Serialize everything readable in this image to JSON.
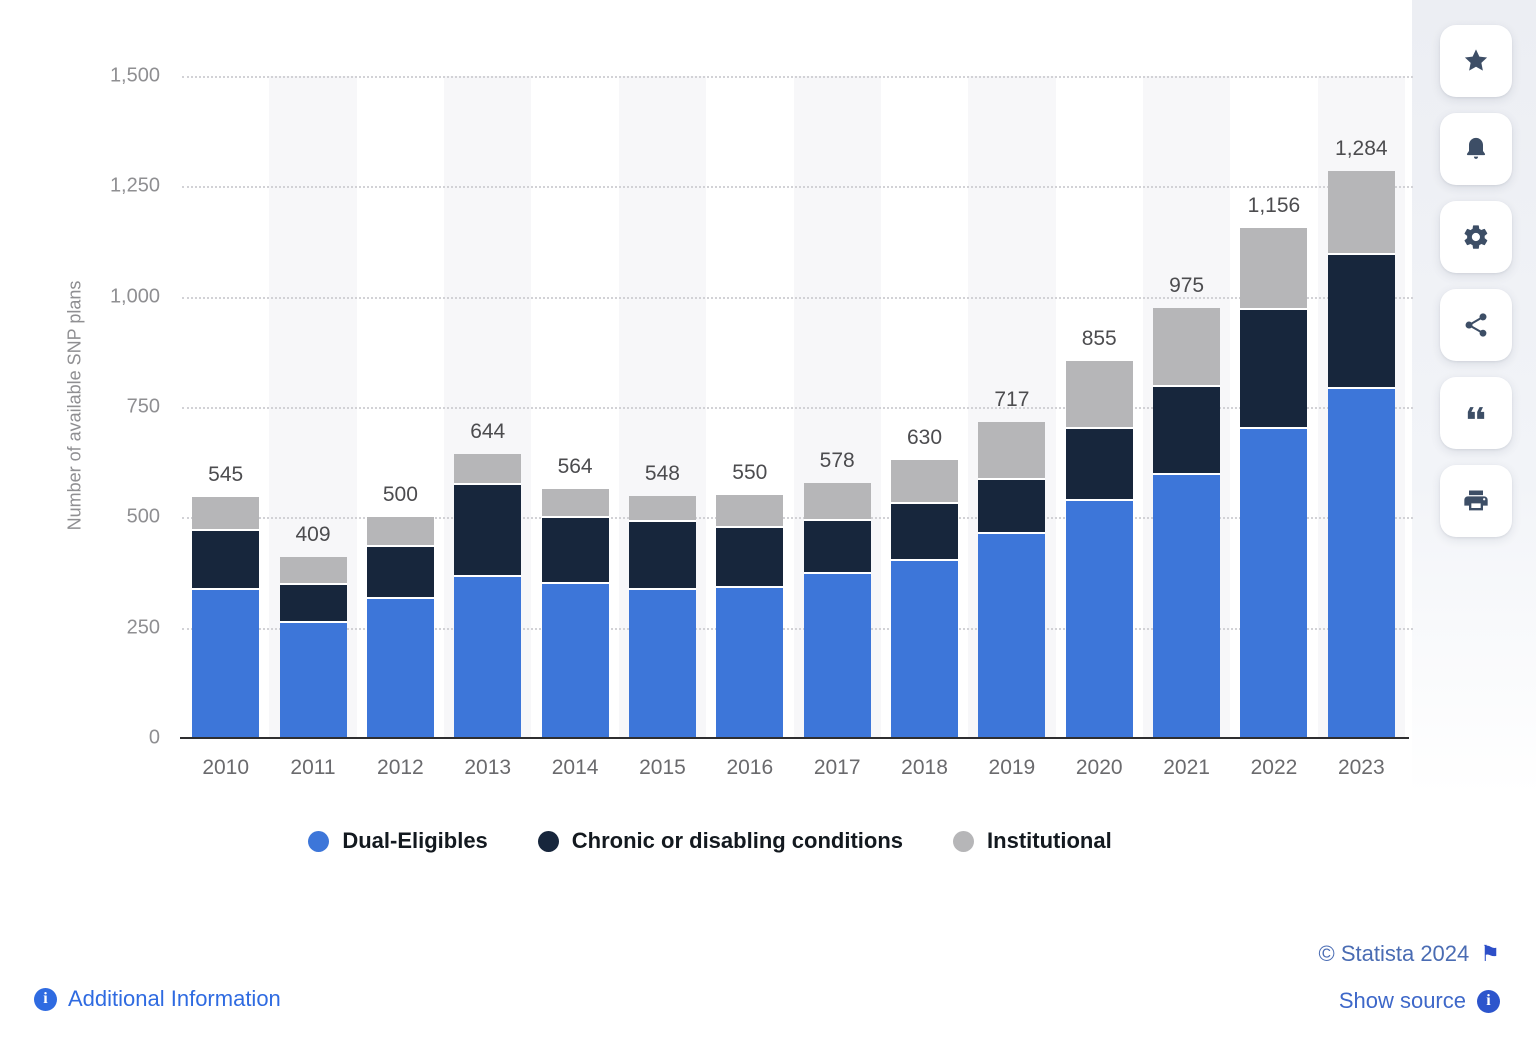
{
  "chart_data": {
    "type": "bar",
    "stacked": true,
    "ylabel": "Number of available SNP plans",
    "xlabel": "",
    "ylim": [
      0,
      1500
    ],
    "y_ticks": [
      0,
      250,
      500,
      750,
      1000,
      1250,
      1500
    ],
    "grid": "dotted-horizontal",
    "legend_position": "bottom",
    "categories": [
      "2010",
      "2011",
      "2012",
      "2013",
      "2014",
      "2015",
      "2016",
      "2017",
      "2018",
      "2019",
      "2020",
      "2021",
      "2022",
      "2023"
    ],
    "series": [
      {
        "name": "Dual-Eligibles",
        "color": "#3d76d9",
        "values": [
          335,
          260,
          314,
          365,
          349,
          335,
          340,
          372,
          400,
          462,
          538,
          596,
          700,
          790
        ]
      },
      {
        "name": "Chronic or disabling conditions",
        "color": "#17263c",
        "values": [
          135,
          87,
          118,
          208,
          149,
          154,
          136,
          119,
          130,
          123,
          162,
          200,
          270,
          305
        ]
      },
      {
        "name": "Institutional",
        "color": "#b6b6b8",
        "values": [
          75,
          62,
          68,
          71,
          66,
          59,
          74,
          87,
          100,
          132,
          155,
          179,
          186,
          189
        ]
      }
    ],
    "totals": [
      545,
      409,
      500,
      644,
      564,
      548,
      550,
      578,
      630,
      717,
      855,
      975,
      1156,
      1284
    ],
    "total_labels": [
      "545",
      "409",
      "500",
      "644",
      "564",
      "548",
      "550",
      "578",
      "630",
      "717",
      "855",
      "975",
      "1,156",
      "1,284"
    ]
  },
  "footer": {
    "additional_info_label": "Additional Information",
    "copyright_label": "© Statista 2024",
    "show_source_label": "Show source"
  },
  "icons": {
    "flag": "⚑",
    "info": "i"
  },
  "toolbar": {
    "buttons": [
      {
        "id": "favorite",
        "icon": "star"
      },
      {
        "id": "notifications",
        "icon": "bell"
      },
      {
        "id": "settings",
        "icon": "gear"
      },
      {
        "id": "share",
        "icon": "share"
      },
      {
        "id": "cite",
        "icon": "quote"
      },
      {
        "id": "print",
        "icon": "printer"
      }
    ]
  },
  "style_colors": {
    "band": "#f7f7f9",
    "gridline": "#d2d2d6",
    "axis": "#2e2e30",
    "toolbar_icon": "#3d4e66",
    "link_primary": "#2f6be1",
    "link_muted": "#4a6cb3"
  }
}
